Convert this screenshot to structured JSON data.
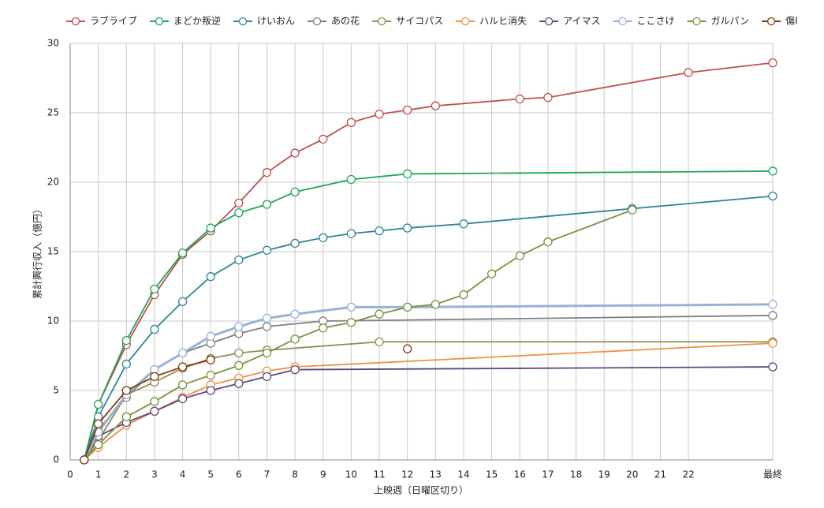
{
  "chart_data": {
    "type": "line",
    "x_label": "上映週（日曜区切り）",
    "y_label": "累計興行収入（億円）",
    "xlim": [
      0,
      25
    ],
    "ylim": [
      0,
      30
    ],
    "xticks": [
      0,
      1,
      2,
      3,
      4,
      5,
      6,
      7,
      8,
      9,
      10,
      11,
      12,
      13,
      14,
      15,
      16,
      17,
      18,
      19,
      20,
      21,
      22,
      {
        "value": 25,
        "label": "最終"
      }
    ],
    "yticks": [
      0,
      5,
      10,
      15,
      20,
      25,
      30
    ],
    "grid": true,
    "legend": "top",
    "series": [
      {
        "name": "ラブライブ",
        "color": "#c0504d",
        "x": [
          0.5,
          1,
          2,
          3,
          4,
          5,
          6,
          7,
          8,
          9,
          10,
          11,
          12,
          13,
          16,
          17,
          22,
          25
        ],
        "values": [
          0,
          4.0,
          8.3,
          11.9,
          14.8,
          16.5,
          18.5,
          20.7,
          22.1,
          23.1,
          24.3,
          24.9,
          25.2,
          25.5,
          26.0,
          26.1,
          27.9,
          28.6
        ]
      },
      {
        "name": "まどか叛逆",
        "color": "#1fa65c",
        "x": [
          0.5,
          1,
          2,
          3,
          4,
          5,
          6,
          7,
          8,
          10,
          12,
          25
        ],
        "values": [
          0,
          4.0,
          8.6,
          12.3,
          14.9,
          16.7,
          17.8,
          18.4,
          19.3,
          20.2,
          20.6,
          20.8
        ]
      },
      {
        "name": "けいおん",
        "color": "#31849b",
        "x": [
          0.5,
          1,
          2,
          3,
          4,
          5,
          6,
          7,
          8,
          9,
          10,
          11,
          12,
          14,
          20,
          25
        ],
        "values": [
          0,
          3.1,
          6.9,
          9.4,
          11.4,
          13.2,
          14.4,
          15.1,
          15.6,
          16.0,
          16.3,
          16.5,
          16.7,
          17.0,
          18.1,
          19.0
        ]
      },
      {
        "name": "あの花",
        "color": "#808080",
        "x": [
          0.5,
          1,
          2,
          3,
          4,
          5,
          6,
          7,
          9,
          25
        ],
        "values": [
          0,
          2.2,
          4.5,
          6.5,
          7.7,
          8.4,
          9.1,
          9.6,
          10.0,
          10.4
        ]
      },
      {
        "name": "サイコパス",
        "color": "#948a54",
        "x": [
          0.5,
          1,
          2,
          3,
          4,
          5,
          6,
          7,
          11,
          25
        ],
        "values": [
          0,
          1.4,
          4.7,
          5.6,
          6.6,
          7.3,
          7.7,
          7.9,
          8.5,
          8.5
        ]
      },
      {
        "name": "ハルヒ消失",
        "color": "#f09040",
        "x": [
          0.5,
          1,
          2,
          3,
          4,
          5,
          6,
          7,
          8,
          25
        ],
        "values": [
          0,
          0.9,
          2.5,
          3.5,
          4.5,
          5.4,
          5.9,
          6.4,
          6.7,
          8.4
        ]
      },
      {
        "name": "アイマス",
        "color": "#5f497a",
        "x": [
          0.5,
          1,
          2,
          3,
          4,
          5,
          6,
          7,
          8,
          25
        ],
        "values": [
          0,
          1.7,
          2.7,
          3.5,
          4.4,
          5.0,
          5.5,
          6.0,
          6.5,
          6.7
        ]
      },
      {
        "name": "ここさけ",
        "color": "#95b3d7",
        "x": [
          0.5,
          1,
          2,
          3,
          4,
          5,
          6,
          7,
          8,
          10,
          12,
          25
        ],
        "values": [
          0,
          2.0,
          4.7,
          6.5,
          7.7,
          8.9,
          9.6,
          10.2,
          10.5,
          11.0,
          11.0,
          11.2
        ]
      },
      {
        "name": "ガルパン",
        "color": "#77933c",
        "x": [
          0.5,
          1,
          2,
          3,
          4,
          5,
          6,
          7,
          8,
          9,
          10,
          11,
          12,
          13,
          14,
          15,
          16,
          17,
          20
        ],
        "values": [
          0,
          1.1,
          3.1,
          4.2,
          5.4,
          6.1,
          6.8,
          7.7,
          8.7,
          9.5,
          9.9,
          10.5,
          11.0,
          11.2,
          11.9,
          13.4,
          14.7,
          15.7,
          18.0
        ]
      },
      {
        "name": "傷Ⅰ",
        "color": "#843c0c",
        "x": [
          0.5,
          1,
          2,
          3,
          4,
          5,
          6,
          12
        ],
        "values": [
          0,
          2.6,
          5.0,
          6.0,
          6.7,
          7.2,
          null,
          8.0
        ]
      }
    ]
  }
}
